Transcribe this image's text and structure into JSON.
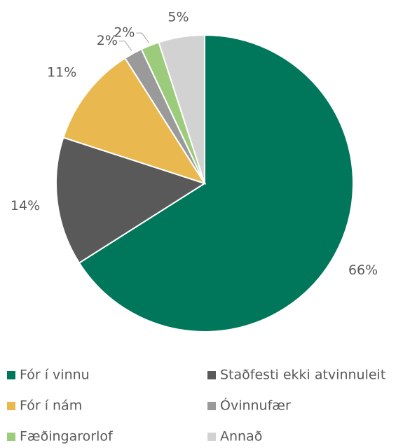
{
  "chart_data": {
    "type": "pie",
    "categories": [
      "Fór í vinnu",
      "Staðfesti ekki atvinnuleit",
      "Fór í nám",
      "Óvinnufær",
      "Fæðingarorlof",
      "Annað"
    ],
    "values": [
      66,
      14,
      11,
      2,
      2,
      5
    ],
    "value_labels": [
      "66%",
      "14%",
      "11%",
      "2%",
      "2%",
      "5%"
    ],
    "colors": [
      "#00775b",
      "#595959",
      "#e9b94f",
      "#9a9a9a",
      "#9ccb7c",
      "#d2d2d2"
    ],
    "legend": "bottom"
  }
}
